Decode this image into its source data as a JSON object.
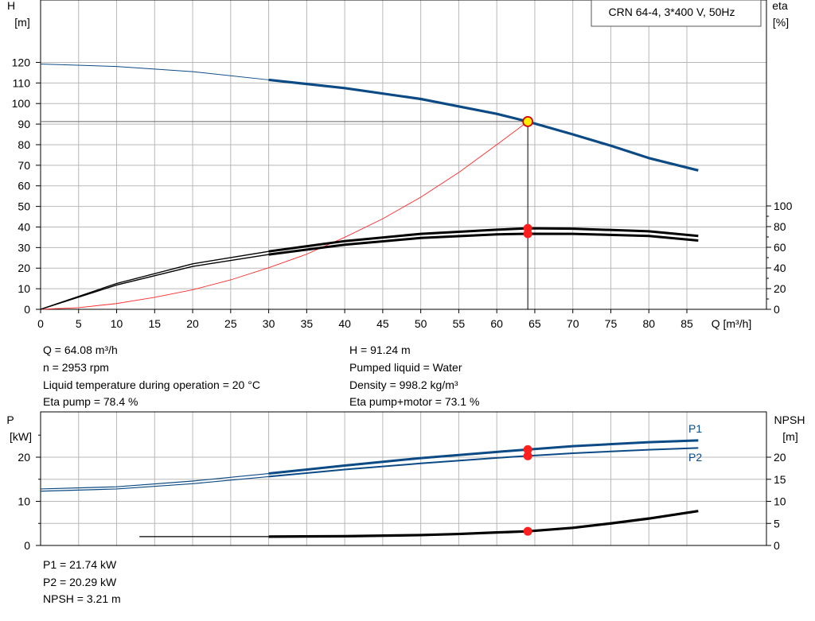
{
  "chart_data": [
    {
      "type": "line",
      "title": "CRN 64-4, 3*400 V, 50Hz",
      "xlabel": "Q [m³/h]",
      "ylabel_left": [
        "H",
        "[m]"
      ],
      "ylabel_right": [
        "eta",
        "[%]"
      ],
      "xlim": [
        0,
        90
      ],
      "ylim_left": [
        0,
        130
      ],
      "ylim_right": [
        0,
        100
      ],
      "x_ticks": [
        "0",
        "5",
        "10",
        "15",
        "20",
        "25",
        "30",
        "35",
        "40",
        "45",
        "50",
        "55",
        "60",
        "65",
        "70",
        "75",
        "80",
        "85"
      ],
      "y_ticks_left": [
        "0",
        "10",
        "20",
        "30",
        "40",
        "50",
        "60",
        "70",
        "80",
        "90",
        "100",
        "110",
        "120"
      ],
      "y_ticks_right": [
        "0",
        "20",
        "40",
        "60",
        "80",
        "100"
      ],
      "grid": true,
      "series": [
        {
          "axis": "left",
          "color": "#0b4a85",
          "x": [
            0,
            10,
            20,
            30,
            40,
            50,
            60,
            64.08,
            70,
            75,
            80,
            86.5
          ],
          "y": [
            119.2,
            118,
            115.5,
            111.5,
            107.5,
            102.2,
            95,
            91.24,
            85,
            79.5,
            73.5,
            67.5
          ]
        },
        {
          "axis": "right",
          "color": "#000000",
          "x": [
            0,
            10,
            20,
            30,
            40,
            50,
            60,
            64.08,
            70,
            80,
            86.5
          ],
          "y": [
            0,
            25,
            44,
            56,
            66,
            73,
            77,
            78.4,
            78,
            75.5,
            71
          ]
        },
        {
          "axis": "right",
          "color": "#000000",
          "x": [
            0,
            10,
            20,
            30,
            40,
            50,
            60,
            64.08,
            70,
            80,
            86.5
          ],
          "y": [
            0,
            23.5,
            41.5,
            53,
            62.5,
            69,
            72.5,
            73.1,
            73,
            71,
            66.5
          ]
        },
        {
          "axis": "left",
          "color": "#ff2a2a",
          "x": [
            0,
            5,
            10,
            15,
            20,
            25,
            30,
            35,
            40,
            45,
            50,
            55,
            60,
            64.08
          ],
          "y": [
            0,
            0.8,
            2.8,
            5.8,
            9.5,
            14.3,
            20.2,
            26.8,
            35,
            44,
            54.5,
            66.5,
            80,
            91.24
          ]
        }
      ],
      "operating_point": {
        "Q": 64.08,
        "H": 91.24,
        "eta_pump": 78.4,
        "eta_total": 73.1
      }
    },
    {
      "type": "line",
      "xlim": [
        0,
        90
      ],
      "ylim_left": [
        0,
        27
      ],
      "ylim_right": [
        0,
        27
      ],
      "ylabel_left": [
        "P",
        "[kW]"
      ],
      "ylabel_right": [
        "NPSH",
        "[m]"
      ],
      "y_ticks_left": [
        "0",
        "10",
        "20"
      ],
      "y_ticks_right": [
        "0",
        "5",
        "10",
        "15",
        "20"
      ],
      "grid": true,
      "series": [
        {
          "name": "P1",
          "axis": "left",
          "color": "#0b4a85",
          "x": [
            0,
            10,
            20,
            30,
            40,
            50,
            60,
            64.08,
            70,
            80,
            86.5
          ],
          "y": [
            12.8,
            13.3,
            14.6,
            16.3,
            18.1,
            19.8,
            21.2,
            21.74,
            22.5,
            23.4,
            23.8
          ]
        },
        {
          "name": "P2",
          "axis": "left",
          "color": "#0b4a85",
          "x": [
            0,
            10,
            20,
            30,
            40,
            50,
            60,
            64.08,
            70,
            80,
            86.5
          ],
          "y": [
            12.3,
            12.8,
            14,
            15.6,
            17.2,
            18.6,
            19.85,
            20.29,
            20.9,
            21.7,
            22.1
          ]
        },
        {
          "axis": "right",
          "color": "#000000",
          "x": [
            13,
            30,
            40,
            50,
            55,
            60,
            64.08,
            70,
            75,
            80,
            86.5
          ],
          "y": [
            2,
            2,
            2.1,
            2.35,
            2.6,
            2.95,
            3.21,
            4,
            5,
            6.1,
            7.8
          ]
        }
      ],
      "operating_point": {
        "Q": 64.08,
        "P1": 21.74,
        "P2": 20.29,
        "NPSH": 3.21
      }
    }
  ],
  "info": {
    "col_left": [
      "Q = 64.08 m³/h",
      "n = 2953 rpm",
      "Liquid temperature during operation = 20 °C",
      "Eta pump = 78.4 %"
    ],
    "col_right": [
      "H = 91.24 m",
      "Pumped liquid = Water",
      "Density = 998.2 kg/m³",
      "Eta pump+motor = 73.1 %"
    ],
    "bottom": [
      "P1 = 21.74 kW",
      "P2 = 20.29 kW",
      "NPSH = 3.21 m"
    ]
  },
  "colors": {
    "blue": "#0b4a85",
    "red": "#ff2a2a",
    "marker": "#ff1f1f",
    "highlight": "#ffee00",
    "grid": "#b8b8b8"
  }
}
